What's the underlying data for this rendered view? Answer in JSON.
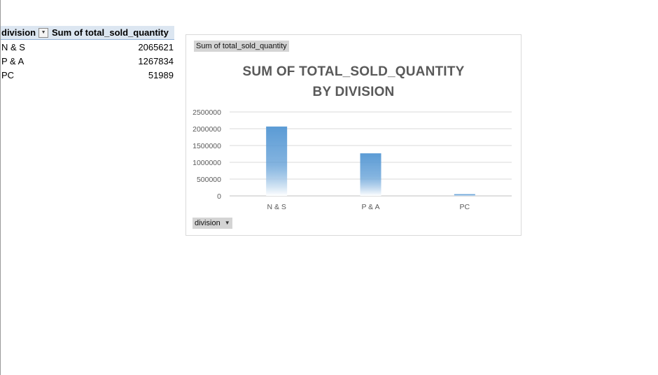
{
  "pivot_table": {
    "header_division": "division",
    "header_sum": "Sum of total_sold_quantity",
    "rows": [
      {
        "label": "N & S",
        "value": "2065621"
      },
      {
        "label": "P & A",
        "value": "1267834"
      },
      {
        "label": "PC",
        "value": "51989"
      }
    ]
  },
  "chart_buttons": {
    "value_field": "Sum of total_sold_quantity",
    "axis_field": "division",
    "dropdown_icon": "chevron-down-icon"
  },
  "colors": {
    "bar_top": "#5b9bd5",
    "bar_bottom": "#ffffff",
    "gridline": "#d9d9d9",
    "axis": "#bfbfbf"
  },
  "chart_data": {
    "type": "bar",
    "title_line1": "SUM OF TOTAL_SOLD_QUANTITY",
    "title_line2": "BY DIVISION",
    "categories": [
      "N & S",
      "P & A",
      "PC"
    ],
    "values": [
      2065621,
      1267834,
      51989
    ],
    "yticks": [
      0,
      500000,
      1000000,
      1500000,
      2000000,
      2500000
    ],
    "ylim": [
      0,
      2500000
    ],
    "grid": true,
    "legend": "none"
  }
}
